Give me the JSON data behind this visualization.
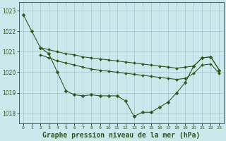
{
  "background_color": "#cce8ec",
  "grid_color": "#aaccd4",
  "line_color": "#2d5a1b",
  "marker_color": "#2d5a1b",
  "xlabel": "Graphe pression niveau de la mer (hPa)",
  "xlabel_fontsize": 7,
  "ylabel_ticks": [
    1018,
    1019,
    1020,
    1021,
    1022,
    1023
  ],
  "xlim": [
    -0.5,
    23.5
  ],
  "ylim": [
    1017.5,
    1023.4
  ],
  "series": [
    {
      "x": [
        0,
        1,
        2,
        3,
        4,
        5,
        6,
        7,
        8,
        9,
        10,
        11,
        12,
        13,
        14,
        15,
        16,
        17,
        18,
        19,
        20,
        21,
        22,
        23
      ],
      "y": [
        1022.8,
        1022.0,
        1021.2,
        1020.9,
        1020.0,
        1019.1,
        1018.9,
        1018.85,
        1018.9,
        1018.85,
        1018.85,
        1018.85,
        1018.6,
        1017.85,
        1018.05,
        1018.05,
        1018.3,
        1018.55,
        1019.0,
        1019.5,
        1020.3,
        1020.7,
        1020.75,
        1020.1
      ],
      "markersize": 2.5,
      "linewidth": 0.8
    },
    {
      "x": [
        2,
        3,
        4,
        5,
        6,
        7,
        8,
        9,
        10,
        11,
        12,
        13,
        14,
        15,
        16,
        17,
        18,
        19,
        20,
        21,
        22,
        23
      ],
      "y": [
        1021.2,
        1021.1,
        1021.0,
        1020.9,
        1020.85,
        1020.75,
        1020.7,
        1020.65,
        1020.6,
        1020.55,
        1020.5,
        1020.45,
        1020.4,
        1020.35,
        1020.3,
        1020.25,
        1020.2,
        1020.25,
        1020.3,
        1020.7,
        1020.75,
        1020.1
      ],
      "markersize": 2.0,
      "linewidth": 0.8
    },
    {
      "x": [
        2,
        3,
        4,
        5,
        6,
        7,
        8,
        9,
        10,
        11,
        12,
        13,
        14,
        15,
        16,
        17,
        18,
        19,
        20,
        21,
        22,
        23
      ],
      "y": [
        1020.85,
        1020.7,
        1020.55,
        1020.45,
        1020.35,
        1020.25,
        1020.15,
        1020.1,
        1020.05,
        1020.0,
        1019.95,
        1019.9,
        1019.85,
        1019.8,
        1019.75,
        1019.7,
        1019.65,
        1019.7,
        1019.95,
        1020.35,
        1020.4,
        1019.95
      ],
      "markersize": 2.0,
      "linewidth": 0.8
    }
  ]
}
